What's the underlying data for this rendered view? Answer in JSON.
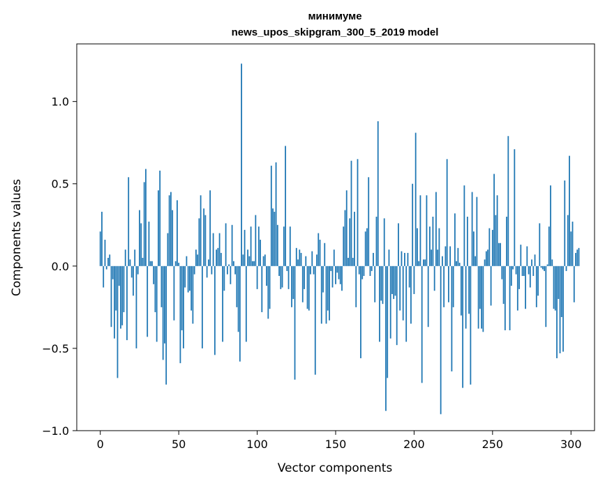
{
  "chart_data": {
    "type": "bar",
    "title": "минимуме",
    "subtitle": "news_upos_skipgram_300_5_2019 model",
    "xlabel": "Vector components",
    "ylabel": "Components values",
    "xlim": [
      -15,
      315
    ],
    "ylim": [
      -1.0,
      1.35
    ],
    "xticks": [
      {
        "value": 0,
        "label": "0"
      },
      {
        "value": 50,
        "label": "50"
      },
      {
        "value": 100,
        "label": "100"
      },
      {
        "value": 150,
        "label": "150"
      },
      {
        "value": 200,
        "label": "200"
      },
      {
        "value": 250,
        "label": "250"
      },
      {
        "value": 300,
        "label": "300"
      }
    ],
    "yticks": [
      {
        "value": -1.0,
        "label": "−1.0"
      },
      {
        "value": -0.5,
        "label": "−0.5"
      },
      {
        "value": 0.0,
        "label": "0.0"
      },
      {
        "value": 0.5,
        "label": "0.5"
      },
      {
        "value": 1.0,
        "label": "1.0"
      }
    ],
    "grid": false,
    "bar_color": "#1f77b4",
    "values": [
      0.21,
      0.33,
      -0.13,
      0.16,
      -0.02,
      0.05,
      0.07,
      -0.37,
      -0.08,
      -0.44,
      -0.27,
      -0.68,
      -0.12,
      -0.38,
      -0.36,
      -0.28,
      0.1,
      -0.45,
      0.54,
      0.04,
      -0.07,
      -0.18,
      0.1,
      -0.5,
      -0.05,
      0.34,
      0.26,
      0.05,
      0.51,
      0.59,
      -0.43,
      0.27,
      0.03,
      0.03,
      -0.11,
      -0.28,
      -0.46,
      0.46,
      0.58,
      -0.25,
      -0.57,
      -0.47,
      -0.72,
      0.2,
      0.43,
      0.45,
      0.34,
      -0.33,
      0.03,
      0.4,
      0.02,
      -0.59,
      -0.39,
      -0.5,
      -0.13,
      0.06,
      -0.16,
      -0.15,
      -0.27,
      -0.35,
      -0.05,
      0.1,
      0.07,
      0.29,
      0.43,
      -0.5,
      0.35,
      0.31,
      -0.07,
      0.04,
      0.46,
      -0.05,
      0.2,
      -0.54,
      0.1,
      0.11,
      0.2,
      0.08,
      -0.46,
      -0.15,
      0.26,
      -0.05,
      0.01,
      -0.11,
      0.25,
      0.03,
      -0.05,
      -0.25,
      -0.4,
      -0.58,
      1.23,
      0.07,
      0.22,
      -0.46,
      0.1,
      0.06,
      0.24,
      0.03,
      0.03,
      0.31,
      -0.14,
      0.24,
      0.16,
      -0.28,
      0.06,
      0.07,
      -0.12,
      -0.32,
      -0.26,
      0.61,
      0.35,
      0.33,
      0.63,
      0.25,
      -0.06,
      -0.14,
      -0.13,
      0.24,
      0.73,
      -0.03,
      -0.14,
      0.24,
      -0.25,
      -0.2,
      -0.69,
      0.11,
      0.04,
      0.1,
      0.08,
      -0.22,
      -0.14,
      0.06,
      -0.26,
      -0.27,
      -0.05,
      0.09,
      -0.05,
      -0.66,
      0.07,
      0.2,
      0.16,
      -0.35,
      -0.16,
      0.14,
      -0.35,
      -0.27,
      -0.33,
      -0.03,
      -0.13,
      0.1,
      -0.11,
      -0.04,
      -0.08,
      -0.11,
      -0.15,
      0.24,
      0.34,
      0.46,
      0.05,
      0.29,
      0.64,
      0.05,
      0.33,
      -0.25,
      0.65,
      -0.05,
      -0.56,
      -0.08,
      -0.06,
      0.21,
      0.23,
      0.54,
      -0.06,
      -0.03,
      0.08,
      -0.22,
      0.3,
      0.88,
      -0.46,
      -0.21,
      -0.23,
      0.29,
      -0.88,
      -0.68,
      0.1,
      -0.44,
      -0.17,
      -0.2,
      -0.18,
      -0.48,
      0.26,
      -0.27,
      0.09,
      -0.33,
      0.08,
      -0.46,
      0.08,
      -0.13,
      -0.35,
      0.5,
      -0.17,
      0.81,
      0.23,
      0.03,
      0.43,
      -0.71,
      0.04,
      0.04,
      0.43,
      -0.37,
      0.24,
      0.1,
      0.3,
      -0.15,
      0.45,
      0.1,
      0.23,
      -0.9,
      0.06,
      -0.25,
      0.12,
      0.65,
      -0.22,
      0.12,
      -0.64,
      -0.25,
      0.32,
      0.03,
      0.11,
      0.02,
      -0.3,
      -0.74,
      0.49,
      -0.38,
      0.3,
      -0.29,
      -0.72,
      0.45,
      0.21,
      0.06,
      0.42,
      -0.38,
      -0.26,
      -0.38,
      -0.4,
      0.04,
      0.09,
      0.1,
      0.23,
      -0.24,
      0.22,
      0.56,
      0.31,
      0.43,
      0.14,
      0.14,
      -0.08,
      -0.23,
      -0.39,
      0.3,
      0.79,
      -0.39,
      -0.12,
      -0.02,
      0.71,
      -0.05,
      -0.27,
      -0.14,
      0.13,
      -0.06,
      -0.06,
      -0.26,
      0.12,
      -0.05,
      -0.13,
      0.04,
      -0.06,
      0.07,
      -0.25,
      -0.18,
      0.26,
      -0.01,
      -0.02,
      -0.03,
      -0.37,
      0.01,
      0.24,
      0.49,
      0.04,
      -0.26,
      -0.27,
      -0.56,
      -0.2,
      -0.53,
      -0.31,
      -0.52,
      0.52,
      -0.03,
      0.31,
      0.67,
      0.21,
      0.27,
      -0.22,
      0.08,
      0.1,
      0.11
    ]
  }
}
